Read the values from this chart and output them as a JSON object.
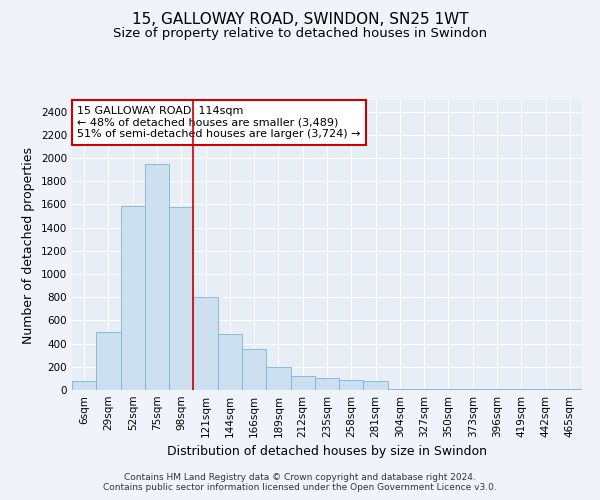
{
  "title": "15, GALLOWAY ROAD, SWINDON, SN25 1WT",
  "subtitle": "Size of property relative to detached houses in Swindon",
  "xlabel": "Distribution of detached houses by size in Swindon",
  "ylabel": "Number of detached properties",
  "categories": [
    "6sqm",
    "29sqm",
    "52sqm",
    "75sqm",
    "98sqm",
    "121sqm",
    "144sqm",
    "166sqm",
    "189sqm",
    "212sqm",
    "235sqm",
    "258sqm",
    "281sqm",
    "304sqm",
    "327sqm",
    "350sqm",
    "373sqm",
    "396sqm",
    "419sqm",
    "442sqm",
    "465sqm"
  ],
  "values": [
    75,
    500,
    1590,
    1950,
    1580,
    800,
    480,
    350,
    200,
    120,
    100,
    90,
    75,
    10,
    10,
    10,
    5,
    5,
    5,
    5,
    5
  ],
  "bar_color": "#cde0f0",
  "bar_edge_color": "#7ab4d8",
  "property_line_x": 4.5,
  "property_line_color": "#cc0000",
  "annotation_text": "15 GALLOWAY ROAD: 114sqm\n← 48% of detached houses are smaller (3,489)\n51% of semi-detached houses are larger (3,724) →",
  "annotation_box_color": "#ffffff",
  "annotation_box_edge_color": "#cc0000",
  "ylim": [
    0,
    2500
  ],
  "yticks": [
    0,
    200,
    400,
    600,
    800,
    1000,
    1200,
    1400,
    1600,
    1800,
    2000,
    2200,
    2400
  ],
  "footer_line1": "Contains HM Land Registry data © Crown copyright and database right 2024.",
  "footer_line2": "Contains public sector information licensed under the Open Government Licence v3.0.",
  "bg_color": "#f0f4fa",
  "plot_bg_color": "#e8eef6",
  "grid_color": "#ffffff",
  "title_fontsize": 11,
  "subtitle_fontsize": 9.5,
  "axis_label_fontsize": 9,
  "tick_fontsize": 7.5,
  "annotation_fontsize": 8,
  "footer_fontsize": 6.5
}
